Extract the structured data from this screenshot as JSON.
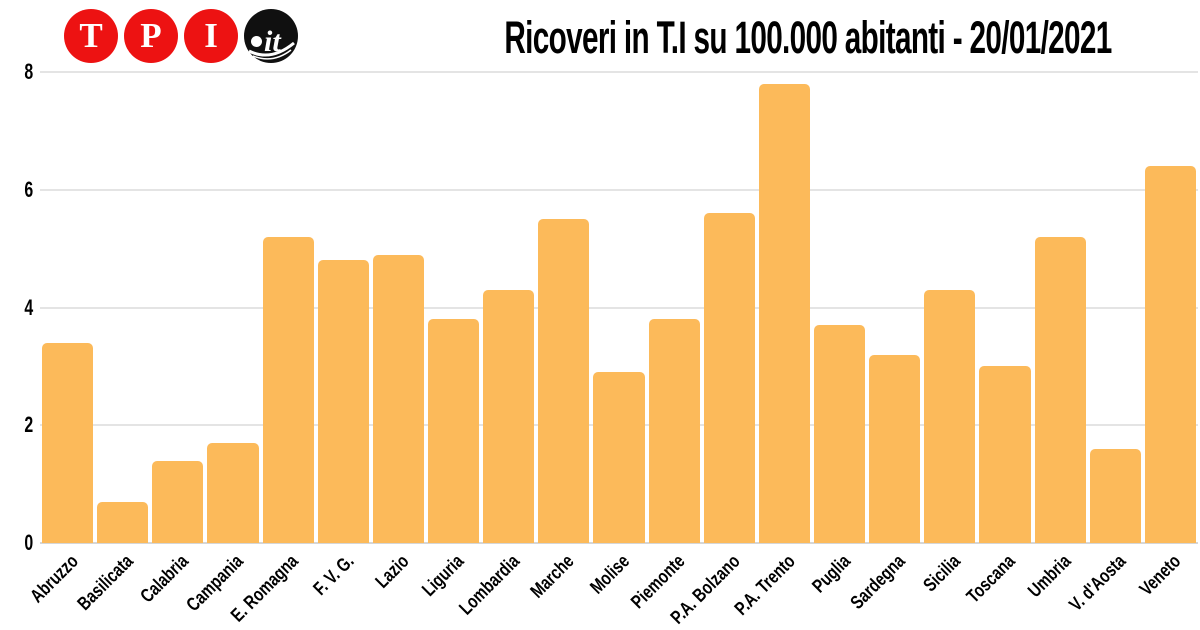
{
  "header": {
    "logo": {
      "letters": [
        "T",
        "P",
        "I"
      ],
      "domain": "it",
      "red": "#ed1212",
      "black": "#101010"
    },
    "title": "Ricoveri in T.I su 100.000 abitanti - 20/01/2021"
  },
  "chart_data": {
    "type": "bar",
    "title": "Ricoveri in T.I su 100.000 abitanti - 20/01/2021",
    "categories": [
      "Abruzzo",
      "Basilicata",
      "Calabria",
      "Campania",
      "E. Romagna",
      "F. V. G.",
      "Lazio",
      "Liguria",
      "Lombardia",
      "Marche",
      "Molise",
      "Piemonte",
      "P.A. Bolzano",
      "P.A. Trento",
      "Puglia",
      "Sardegna",
      "Sicilia",
      "Toscana",
      "Umbria",
      "V. d'Aosta",
      "Veneto"
    ],
    "values": [
      3.4,
      0.7,
      1.4,
      1.7,
      5.2,
      4.8,
      4.9,
      3.8,
      4.3,
      5.5,
      2.9,
      3.8,
      5.6,
      7.8,
      3.7,
      3.2,
      4.3,
      3.0,
      5.2,
      1.6,
      6.4
    ],
    "xlabel": "",
    "ylabel": "",
    "ylim": [
      0,
      8
    ],
    "yticks": [
      0,
      2,
      4,
      6,
      8
    ],
    "grid": true,
    "legend": "none",
    "bar_color": "#fcba5a",
    "gridline_color": "#e4e4e4"
  }
}
